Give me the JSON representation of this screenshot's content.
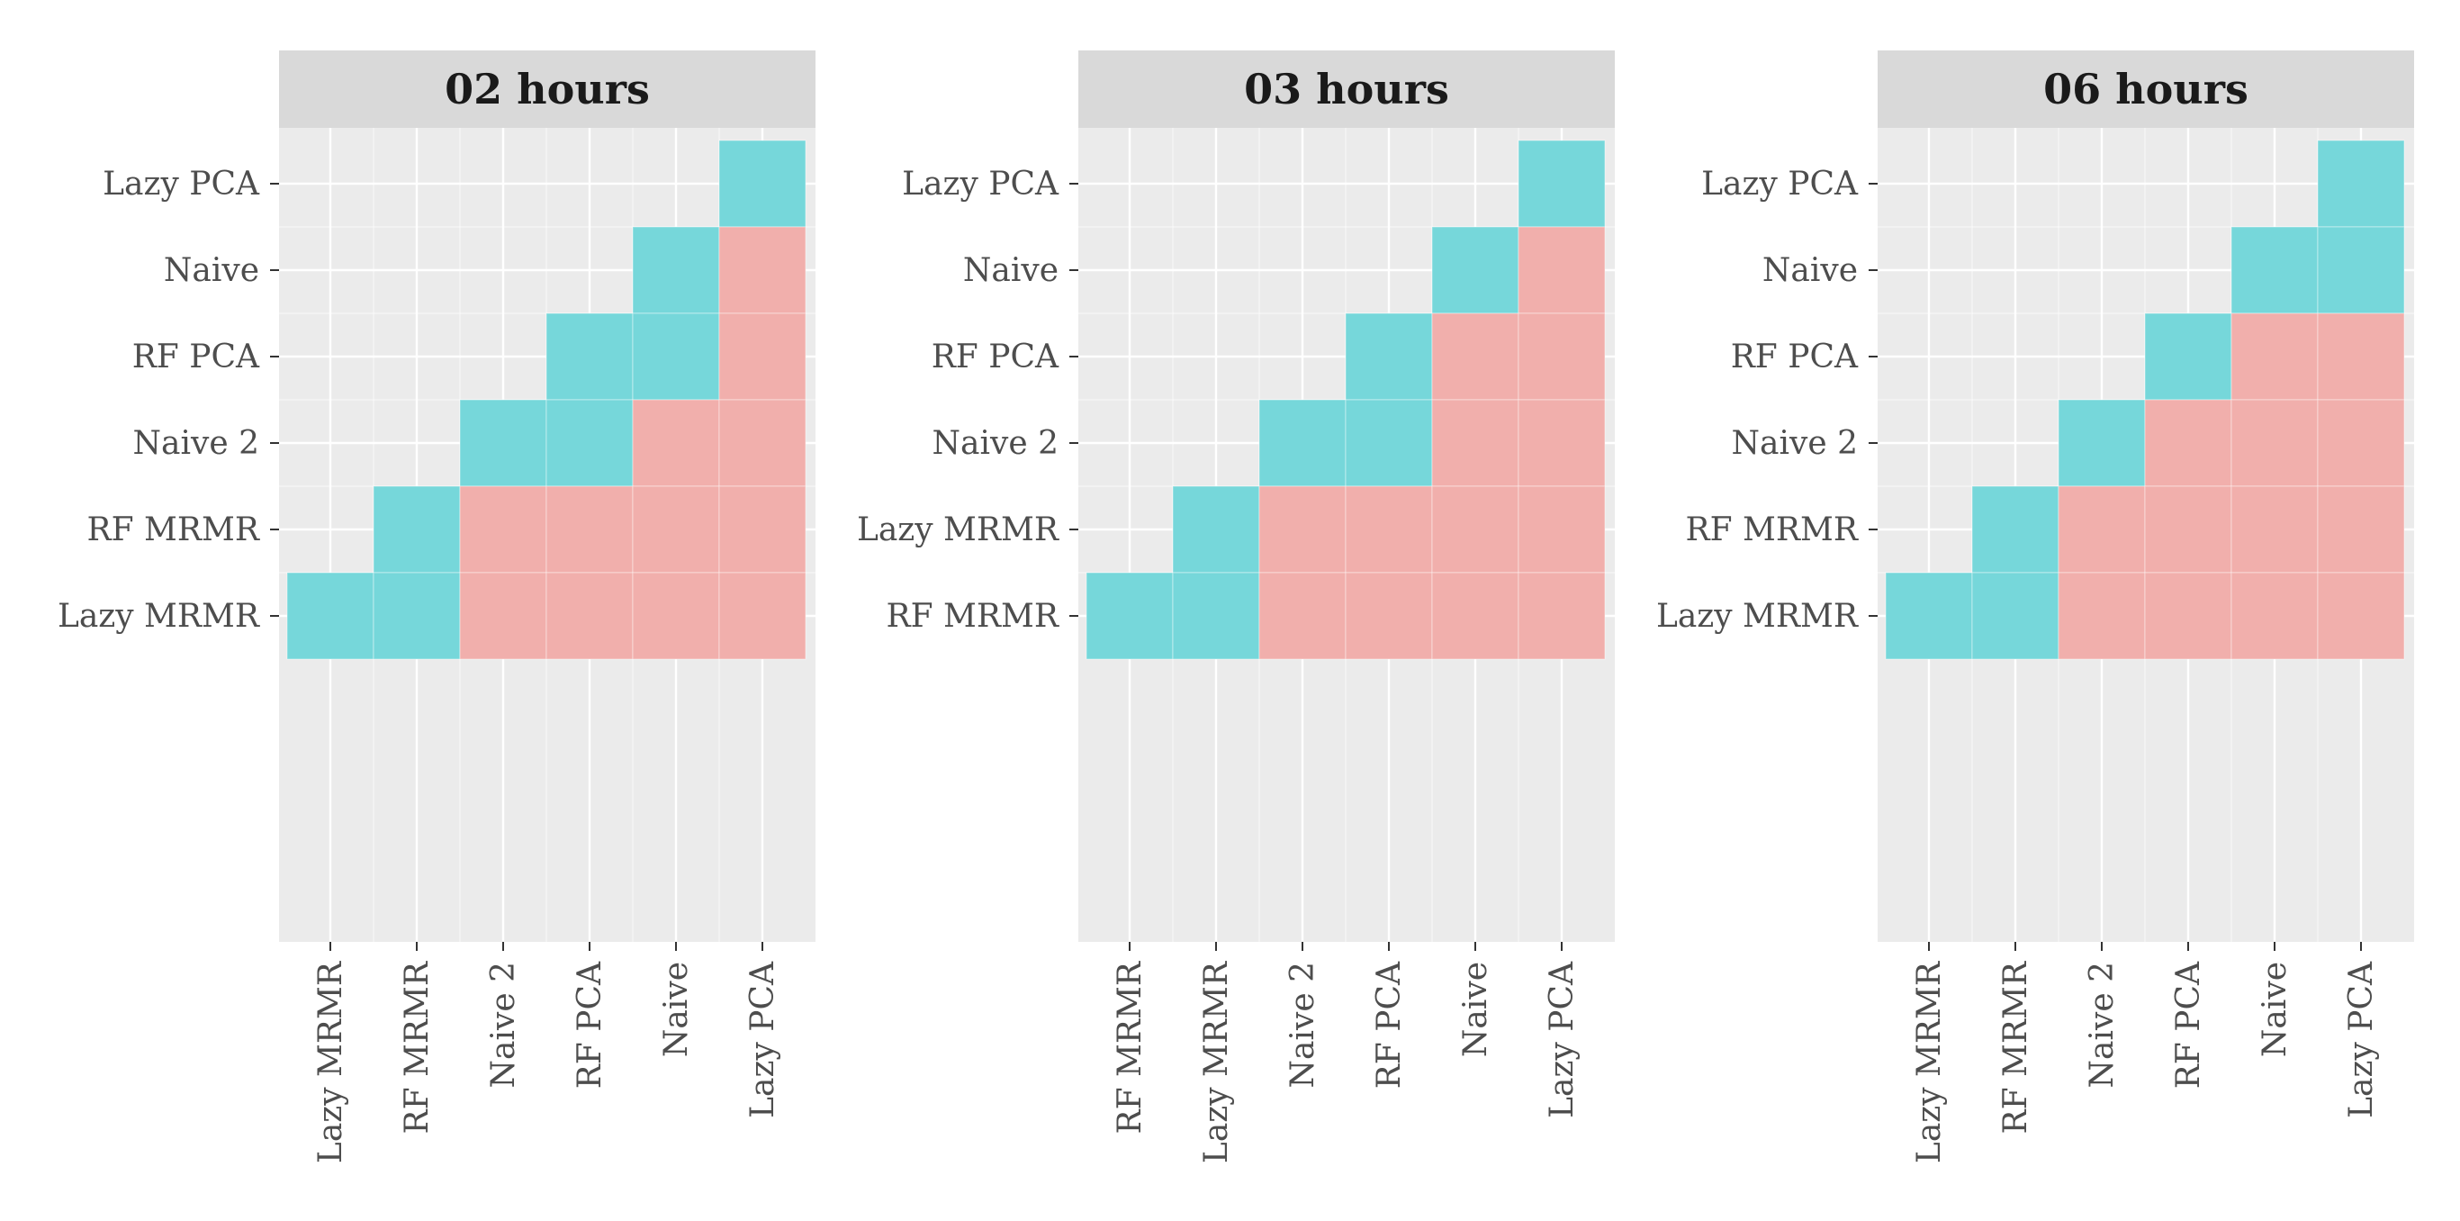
{
  "chart_data": {
    "type": "heatmap",
    "colors": {
      "blue": "#76d7da",
      "red": "#f1afac",
      "panel_bg": "#ebebeb",
      "strip_bg": "#d9d9d9",
      "grid": "#ffffff",
      "text": "#4d4d4d"
    },
    "legend": "none",
    "panels": [
      {
        "title": "02 hours",
        "x_labels": [
          "Lazy MRMR",
          "RF MRMR",
          "Naive 2",
          "RF PCA",
          "Naive",
          "Lazy PCA"
        ],
        "y_labels": [
          "Lazy PCA",
          "Naive",
          "RF PCA",
          "Naive 2",
          "RF MRMR",
          "Lazy MRMR"
        ],
        "cells": [
          [
            "",
            "",
            "",
            "",
            "",
            "blue"
          ],
          [
            "",
            "",
            "",
            "",
            "blue",
            "red"
          ],
          [
            "",
            "",
            "",
            "blue",
            "blue",
            "red"
          ],
          [
            "",
            "",
            "blue",
            "blue",
            "red",
            "red"
          ],
          [
            "",
            "blue",
            "red",
            "red",
            "red",
            "red"
          ],
          [
            "blue",
            "blue",
            "red",
            "red",
            "red",
            "red"
          ]
        ]
      },
      {
        "title": "03 hours",
        "x_labels": [
          "RF MRMR",
          "Lazy MRMR",
          "Naive 2",
          "RF PCA",
          "Naive",
          "Lazy PCA"
        ],
        "y_labels": [
          "Lazy PCA",
          "Naive",
          "RF PCA",
          "Naive 2",
          "Lazy MRMR",
          "RF MRMR"
        ],
        "cells": [
          [
            "",
            "",
            "",
            "",
            "",
            "blue"
          ],
          [
            "",
            "",
            "",
            "",
            "blue",
            "red"
          ],
          [
            "",
            "",
            "",
            "blue",
            "red",
            "red"
          ],
          [
            "",
            "",
            "blue",
            "blue",
            "red",
            "red"
          ],
          [
            "",
            "blue",
            "red",
            "red",
            "red",
            "red"
          ],
          [
            "blue",
            "blue",
            "red",
            "red",
            "red",
            "red"
          ]
        ]
      },
      {
        "title": "06 hours",
        "x_labels": [
          "Lazy MRMR",
          "RF MRMR",
          "Naive 2",
          "RF PCA",
          "Naive",
          "Lazy PCA"
        ],
        "y_labels": [
          "Lazy PCA",
          "Naive",
          "RF PCA",
          "Naive 2",
          "RF MRMR",
          "Lazy MRMR"
        ],
        "cells": [
          [
            "",
            "",
            "",
            "",
            "",
            "blue"
          ],
          [
            "",
            "",
            "",
            "",
            "blue",
            "blue"
          ],
          [
            "",
            "",
            "",
            "blue",
            "red",
            "red"
          ],
          [
            "",
            "",
            "blue",
            "red",
            "red",
            "red"
          ],
          [
            "",
            "blue",
            "red",
            "red",
            "red",
            "red"
          ],
          [
            "blue",
            "blue",
            "red",
            "red",
            "red",
            "red"
          ]
        ]
      }
    ]
  }
}
